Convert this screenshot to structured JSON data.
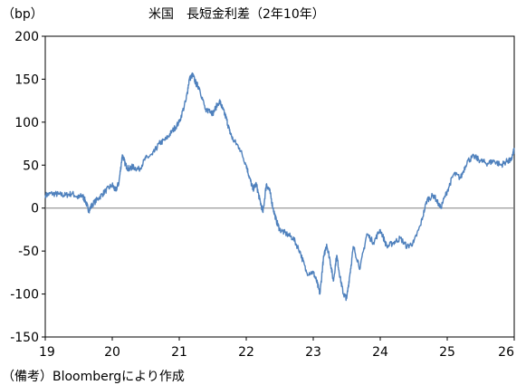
{
  "chart_data": {
    "type": "line",
    "title": "米国　長短金利差（2年10年）",
    "unit_label": "（bp）",
    "ylim": [
      -150,
      200
    ],
    "yticks": [
      -150,
      -100,
      -50,
      0,
      50,
      100,
      150,
      200
    ],
    "xlim": [
      19,
      26
    ],
    "xticks": [
      19,
      20,
      21,
      22,
      23,
      24,
      25,
      26
    ],
    "grid": false,
    "zero_line": true,
    "source_note": "（備考）Bloombergにより作成",
    "colors": {
      "line": "#4f81bd",
      "zero_line": "#808080",
      "frame": "#000000"
    },
    "series": [
      {
        "x": [
          19.0,
          19.1,
          19.2,
          19.3,
          19.4,
          19.5,
          19.55,
          19.6,
          19.65,
          19.7,
          19.8,
          19.9,
          20.0,
          20.05,
          20.1,
          20.15,
          20.2,
          20.25,
          20.3,
          20.4,
          20.5,
          20.6,
          20.7,
          20.8,
          20.9,
          21.0,
          21.1,
          21.15,
          21.2,
          21.25,
          21.3,
          21.4,
          21.45,
          21.5,
          21.6,
          21.65,
          21.7,
          21.75,
          21.8,
          21.9,
          22.0,
          22.05,
          22.1,
          22.15,
          22.2,
          22.25,
          22.3,
          22.35,
          22.4,
          22.45,
          22.5,
          22.6,
          22.7,
          22.8,
          22.9,
          23.0,
          23.05,
          23.1,
          23.15,
          23.2,
          23.25,
          23.3,
          23.35,
          23.4,
          23.45,
          23.5,
          23.55,
          23.6,
          23.7,
          23.8,
          23.9,
          24.0,
          24.1,
          24.2,
          24.3,
          24.4,
          24.5,
          24.6,
          24.7,
          24.8,
          24.9,
          25.0,
          25.1,
          25.2,
          25.3,
          25.4,
          25.5,
          25.6,
          25.7,
          25.8,
          25.9,
          25.95,
          26.0
        ],
        "values": [
          15,
          17,
          16,
          15,
          17,
          12,
          15,
          8,
          -3,
          4,
          12,
          20,
          27,
          20,
          30,
          62,
          50,
          45,
          48,
          45,
          58,
          62,
          75,
          80,
          90,
          100,
          125,
          150,
          155,
          145,
          140,
          112,
          115,
          110,
          125,
          115,
          105,
          90,
          80,
          70,
          50,
          35,
          22,
          28,
          10,
          -5,
          28,
          20,
          0,
          -15,
          -25,
          -30,
          -35,
          -50,
          -75,
          -75,
          -85,
          -100,
          -60,
          -42,
          -60,
          -85,
          -55,
          -80,
          -100,
          -105,
          -75,
          -45,
          -70,
          -30,
          -40,
          -25,
          -45,
          -40,
          -35,
          -45,
          -40,
          -20,
          10,
          15,
          0,
          20,
          40,
          35,
          55,
          60,
          55,
          52,
          55,
          50,
          55,
          55,
          68
        ]
      }
    ]
  }
}
